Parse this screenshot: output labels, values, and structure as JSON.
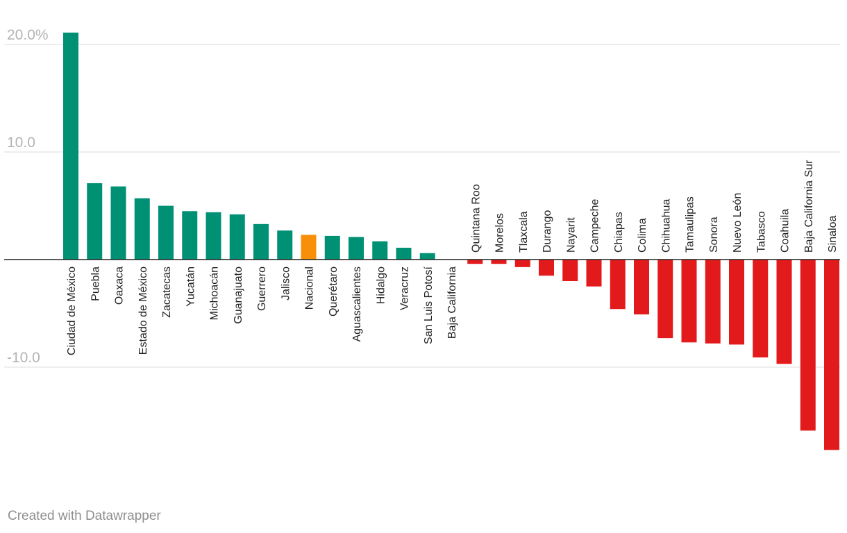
{
  "chart_data": {
    "type": "bar",
    "categories": [
      "Ciudad de México",
      "Puebla",
      "Oaxaca",
      "Estado de México",
      "Zacatecas",
      "Yucatán",
      "Michoacán",
      "Guanajuato",
      "Guerrero",
      "Jalisco",
      "Nacional",
      "Querétaro",
      "Aguascalientes",
      "Hidalgo",
      "Veracruz",
      "San Luis Potosí",
      "Baja California",
      "Quintana Roo",
      "Morelos",
      "Tlaxcala",
      "Durango",
      "Nayarit",
      "Campeche",
      "Chiapas",
      "Colima",
      "Chihuahua",
      "Tamaulipas",
      "Sonora",
      "Nuevo León",
      "Tabasco",
      "Coahuila",
      "Baja California Sur",
      "Sinaloa"
    ],
    "values": [
      21.1,
      7.1,
      6.8,
      5.7,
      5.0,
      4.5,
      4.4,
      4.2,
      3.3,
      2.7,
      2.3,
      2.2,
      2.1,
      1.7,
      1.1,
      0.6,
      0.0,
      -0.4,
      -0.4,
      -0.7,
      -1.5,
      -2.0,
      -2.5,
      -4.6,
      -5.1,
      -7.3,
      -7.7,
      -7.8,
      -7.9,
      -9.1,
      -9.7,
      -15.9,
      -17.7
    ],
    "colors": [
      "#009175",
      "#009175",
      "#009175",
      "#009175",
      "#009175",
      "#009175",
      "#009175",
      "#009175",
      "#009175",
      "#009175",
      "#f98e09",
      "#009175",
      "#009175",
      "#009175",
      "#009175",
      "#009175",
      "#009175",
      "#e31a1c",
      "#e31a1c",
      "#e31a1c",
      "#e31a1c",
      "#e31a1c",
      "#e31a1c",
      "#e31a1c",
      "#e31a1c",
      "#e31a1c",
      "#e31a1c",
      "#e31a1c",
      "#e31a1c",
      "#e31a1c",
      "#e31a1c",
      "#e31a1c",
      "#e31a1c"
    ],
    "yticks": [
      {
        "value": 20,
        "label": "20.0%"
      },
      {
        "value": 10,
        "label": "10.0"
      },
      {
        "value": -10,
        "label": "-10.0"
      }
    ],
    "ylim": [
      -20,
      22
    ],
    "grid": true,
    "title": "",
    "xlabel": "",
    "ylabel": ""
  },
  "footer": "Created with Datawrapper"
}
